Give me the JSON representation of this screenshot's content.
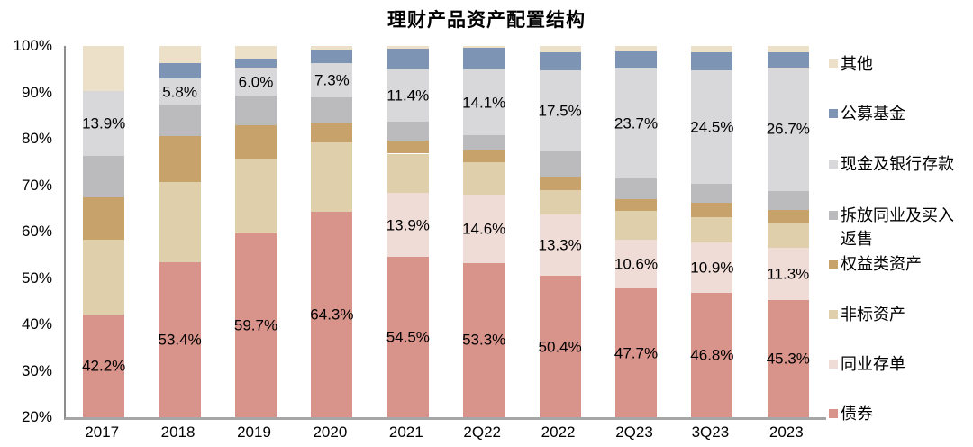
{
  "title": "理财产品资产配置结构",
  "y_axis": {
    "ticks": [
      "100%",
      "90%",
      "80%",
      "70%",
      "60%",
      "50%",
      "40%",
      "30%",
      "20%"
    ]
  },
  "chart_data": {
    "type": "bar",
    "subtype": "stacked-100-percent",
    "title": "理财产品资产配置结构",
    "xlabel": "",
    "ylabel": "",
    "ylim": [
      20,
      100
    ],
    "grid": false,
    "legend_position": "right",
    "categories": [
      "2017",
      "2018",
      "2019",
      "2020",
      "2021",
      "2Q22",
      "2022",
      "2Q23",
      "3Q23",
      "2023"
    ],
    "series": [
      {
        "key": "bonds",
        "name": "债券",
        "color": "#D8938A",
        "values": [
          42.2,
          53.4,
          59.7,
          64.3,
          54.5,
          53.3,
          50.4,
          47.7,
          46.8,
          45.3
        ],
        "labels": [
          "42.2%",
          "53.4%",
          "59.7%",
          "64.3%",
          "54.5%",
          "53.3%",
          "50.4%",
          "47.7%",
          "46.8%",
          "45.3%"
        ]
      },
      {
        "key": "interbank-cd",
        "name": "同业存单",
        "color": "#F0DCD6",
        "values": [
          0,
          0,
          0,
          0,
          13.9,
          14.6,
          13.3,
          10.6,
          10.9,
          11.3
        ],
        "labels": [
          "",
          "",
          "",
          "",
          "13.9%",
          "14.6%",
          "13.3%",
          "10.6%",
          "10.9%",
          "11.3%"
        ]
      },
      {
        "key": "nonstandard-assets",
        "name": "非标资产",
        "color": "#DFCFAB",
        "values": [
          16.0,
          17.3,
          16.1,
          15.0,
          8.4,
          7.1,
          5.2,
          6.1,
          5.5,
          5.2
        ],
        "labels": null
      },
      {
        "key": "equity-assets",
        "name": "权益类资产",
        "color": "#C7A26B",
        "values": [
          9.2,
          9.9,
          7.2,
          4.1,
          2.9,
          2.7,
          2.9,
          2.6,
          3.0,
          2.9
        ],
        "labels": null
      },
      {
        "key": "interbank-lending-repo",
        "name": "拆放同业及买入返售",
        "color": "#BBBBBE",
        "values": [
          9.0,
          6.6,
          6.3,
          5.6,
          3.9,
          3.1,
          5.4,
          4.4,
          4.0,
          4.0
        ],
        "labels": null
      },
      {
        "key": "cash-bank-deposits",
        "name": "现金及银行存款",
        "color": "#D8D8DA",
        "values": [
          13.9,
          5.8,
          6.0,
          7.3,
          11.4,
          14.1,
          17.5,
          23.7,
          24.5,
          26.7
        ],
        "labels": [
          "13.9%",
          "5.8%",
          "6.0%",
          "7.3%",
          "11.4%",
          "14.1%",
          "17.5%",
          "23.7%",
          "24.5%",
          "26.7%"
        ]
      },
      {
        "key": "public-funds",
        "name": "公募基金",
        "color": "#7D94B5",
        "values": [
          0,
          3.4,
          1.7,
          3.0,
          4.4,
          4.7,
          4.0,
          3.7,
          4.0,
          3.2
        ],
        "labels": null
      },
      {
        "key": "other",
        "name": "其他",
        "color": "#ECE0C8",
        "values": [
          9.7,
          3.6,
          3.0,
          0.7,
          0.6,
          0.4,
          1.3,
          1.2,
          1.3,
          1.4
        ],
        "labels": null
      }
    ]
  }
}
